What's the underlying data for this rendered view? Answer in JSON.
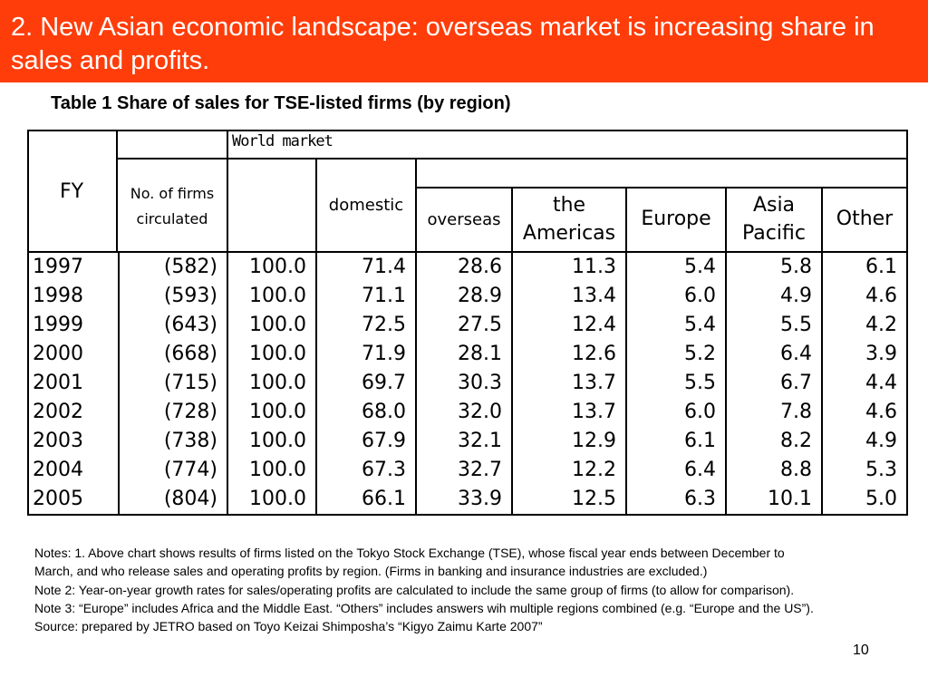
{
  "header": {
    "title": "2. New Asian economic landscape: overseas market is increasing share in sales and profits."
  },
  "table": {
    "caption": "Table 1 Share of sales for TSE-listed firms (by region)",
    "headers": {
      "fy": "FY",
      "num_firms": "No. of firms circulated",
      "world_market": "World market",
      "domestic": "domestic",
      "overseas": "overseas",
      "americas": "the Americas",
      "europe": "Europe",
      "asia_pacific": "Asia Pacific",
      "other": "Other"
    },
    "rows": [
      [
        "1997",
        "(582)",
        "100.0",
        "71.4",
        "28.6",
        "11.3",
        "5.4",
        "5.8",
        "6.1"
      ],
      [
        "1998",
        "(593)",
        "100.0",
        "71.1",
        "28.9",
        "13.4",
        "6.0",
        "4.9",
        "4.6"
      ],
      [
        "1999",
        "(643)",
        "100.0",
        "72.5",
        "27.5",
        "12.4",
        "5.4",
        "5.5",
        "4.2"
      ],
      [
        "2000",
        "(668)",
        "100.0",
        "71.9",
        "28.1",
        "12.6",
        "5.2",
        "6.4",
        "3.9"
      ],
      [
        "2001",
        "(715)",
        "100.0",
        "69.7",
        "30.3",
        "13.7",
        "5.5",
        "6.7",
        "4.4"
      ],
      [
        "2002",
        "(728)",
        "100.0",
        "68.0",
        "32.0",
        "13.7",
        "6.0",
        "7.8",
        "4.6"
      ],
      [
        "2003",
        "(738)",
        "100.0",
        "67.9",
        "32.1",
        "12.9",
        "6.1",
        "8.2",
        "4.9"
      ],
      [
        "2004",
        "(774)",
        "100.0",
        "67.3",
        "32.7",
        "12.2",
        "6.4",
        "8.8",
        "5.3"
      ],
      [
        "2005",
        "(804)",
        "100.0",
        "66.1",
        "33.9",
        "12.5",
        "6.3",
        "10.1",
        "5.0"
      ]
    ]
  },
  "notes": {
    "note1": "Notes: 1. Above chart shows results of firms listed on the Tokyo Stock Exchange (TSE), whose fiscal year ends between December to March, and who release sales and operating profits by region. (Firms in banking and insurance industries are excluded.)",
    "note2": "Note 2: Year-on-year growth rates for sales/operating profits are calculated to include the same group of firms (to allow for comparison).",
    "note3": "Note 3: “Europe” includes Africa and the Middle East. “Others” includes answers wih multiple regions combined (e.g. “Europe and the US”).",
    "source": "Source: prepared by JETRO based on Toyo Keizai Shimposha’s “Kigyo Zaimu Karte 2007”"
  },
  "page_number": "10",
  "colors": {
    "header_bg": "#ff3d0a",
    "header_text": "#ffffff"
  }
}
